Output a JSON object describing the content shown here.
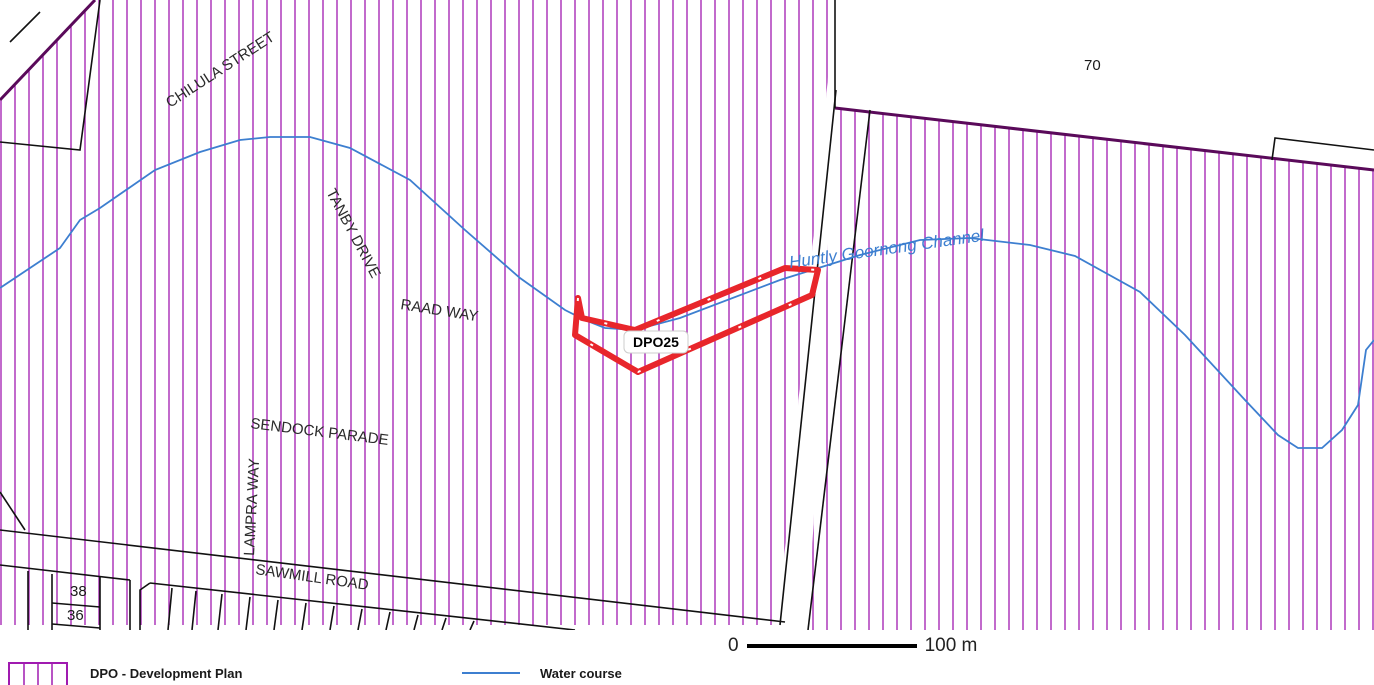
{
  "map": {
    "street_labels": {
      "chilula": "CHILULA STREET",
      "tanby": "TANBY DRIVE",
      "raad": "RAAD WAY",
      "sendock": "SENDOCK PARADE",
      "lampra": "LAMPRA WAY",
      "sawmill": "SAWMILL ROAD"
    },
    "lot_labels": {
      "lot_70": "70",
      "lot_38": "38",
      "lot_36": "36"
    },
    "channel_label": "Huntly Goornong Channel",
    "overlay_label": "DPO25",
    "colors": {
      "overlay_hatch": "#a01ab0",
      "overlay_boundary": "#5a0a5a",
      "water": "#3d7fd0",
      "site": "#e8262b",
      "parcel": "#111111"
    }
  },
  "scale_bar": {
    "start": "0",
    "end": "100 m"
  },
  "legend": {
    "items": [
      {
        "label": "DPO - Development Plan",
        "icon": "hatched-box-icon"
      },
      {
        "label": "Water course",
        "icon": "blue-line-icon"
      }
    ]
  }
}
